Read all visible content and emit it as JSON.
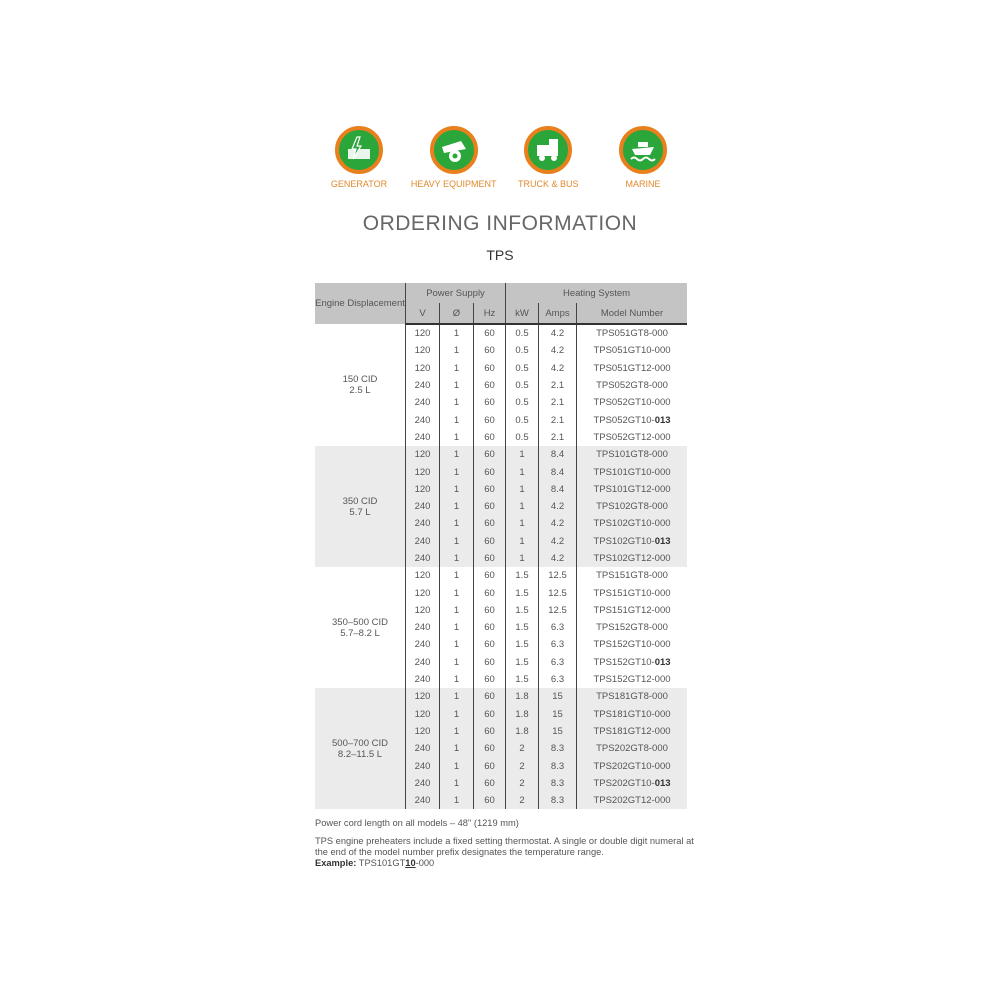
{
  "icons": [
    {
      "name": "generator",
      "label": "GENERATOR"
    },
    {
      "name": "heavy-equipment",
      "label": "HEAVY EQUIPMENT"
    },
    {
      "name": "truck-bus",
      "label": "TRUCK & BUS"
    },
    {
      "name": "marine",
      "label": "MARINE"
    }
  ],
  "colors": {
    "icon_ring": "#e8801e",
    "icon_fill": "#2aa63a",
    "header_bg": "#c4c4c4",
    "alt_row_bg": "#ebebeb"
  },
  "title": "ORDERING INFORMATION",
  "subtitle": "TPS",
  "table": {
    "headers": {
      "engine": "Engine Displacement",
      "power": "Power Supply",
      "heating": "Heating System",
      "v": "V",
      "phase": "Ø",
      "hz": "Hz",
      "kw": "kW",
      "amps": "Amps",
      "model": "Model Number"
    },
    "groups": [
      {
        "engine": [
          "150 CID",
          "2.5 L"
        ],
        "rows": [
          [
            "120",
            "1",
            "60",
            "0.5",
            "4.2",
            "TPS051GT8-000"
          ],
          [
            "120",
            "1",
            "60",
            "0.5",
            "4.2",
            "TPS051GT10-000"
          ],
          [
            "120",
            "1",
            "60",
            "0.5",
            "4.2",
            "TPS051GT12-000"
          ],
          [
            "240",
            "1",
            "60",
            "0.5",
            "2.1",
            "TPS052GT8-000"
          ],
          [
            "240",
            "1",
            "60",
            "0.5",
            "2.1",
            "TPS052GT10-000"
          ],
          [
            "240",
            "1",
            "60",
            "0.5",
            "2.1",
            "TPS052GT10-013"
          ],
          [
            "240",
            "1",
            "60",
            "0.5",
            "2.1",
            "TPS052GT12-000"
          ]
        ]
      },
      {
        "engine": [
          "350 CID",
          "5.7 L"
        ],
        "rows": [
          [
            "120",
            "1",
            "60",
            "1",
            "8.4",
            "TPS101GT8-000"
          ],
          [
            "120",
            "1",
            "60",
            "1",
            "8.4",
            "TPS101GT10-000"
          ],
          [
            "120",
            "1",
            "60",
            "1",
            "8.4",
            "TPS101GT12-000"
          ],
          [
            "240",
            "1",
            "60",
            "1",
            "4.2",
            "TPS102GT8-000"
          ],
          [
            "240",
            "1",
            "60",
            "1",
            "4.2",
            "TPS102GT10-000"
          ],
          [
            "240",
            "1",
            "60",
            "1",
            "4.2",
            "TPS102GT10-013"
          ],
          [
            "240",
            "1",
            "60",
            "1",
            "4.2",
            "TPS102GT12-000"
          ]
        ]
      },
      {
        "engine": [
          "350–500 CID",
          "5.7–8.2 L"
        ],
        "rows": [
          [
            "120",
            "1",
            "60",
            "1.5",
            "12.5",
            "TPS151GT8-000"
          ],
          [
            "120",
            "1",
            "60",
            "1.5",
            "12.5",
            "TPS151GT10-000"
          ],
          [
            "120",
            "1",
            "60",
            "1.5",
            "12.5",
            "TPS151GT12-000"
          ],
          [
            "240",
            "1",
            "60",
            "1.5",
            "6.3",
            "TPS152GT8-000"
          ],
          [
            "240",
            "1",
            "60",
            "1.5",
            "6.3",
            "TPS152GT10-000"
          ],
          [
            "240",
            "1",
            "60",
            "1.5",
            "6.3",
            "TPS152GT10-013"
          ],
          [
            "240",
            "1",
            "60",
            "1.5",
            "6.3",
            "TPS152GT12-000"
          ]
        ]
      },
      {
        "engine": [
          "500–700 CID",
          "8.2–11.5 L"
        ],
        "rows": [
          [
            "120",
            "1",
            "60",
            "1.8",
            "15",
            "TPS181GT8-000"
          ],
          [
            "120",
            "1",
            "60",
            "1.8",
            "15",
            "TPS181GT10-000"
          ],
          [
            "120",
            "1",
            "60",
            "1.8",
            "15",
            "TPS181GT12-000"
          ],
          [
            "240",
            "1",
            "60",
            "2",
            "8.3",
            "TPS202GT8-000"
          ],
          [
            "240",
            "1",
            "60",
            "2",
            "8.3",
            "TPS202GT10-000"
          ],
          [
            "240",
            "1",
            "60",
            "2",
            "8.3",
            "TPS202GT10-013"
          ],
          [
            "240",
            "1",
            "60",
            "2",
            "8.3",
            "TPS202GT12-000"
          ]
        ]
      }
    ]
  },
  "notes": {
    "cord": "Power cord length on all models – 48\" (1219 mm)",
    "thermostat": "TPS engine preheaters include a fixed setting thermostat. A single or double digit numeral at the end of the model number prefix designates the temperature range.",
    "example_label": "Example:",
    "example_prefix": "TPS101GT",
    "example_digits": "10",
    "example_suffix": "-000"
  }
}
